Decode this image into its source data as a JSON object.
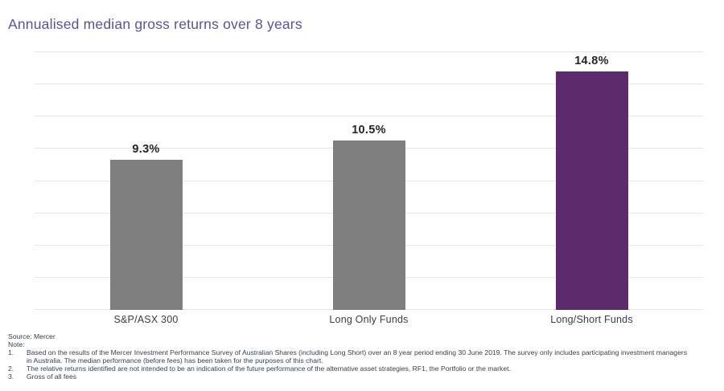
{
  "title": "Annualised median gross returns over 8 years",
  "chart_data": {
    "type": "bar",
    "title": "Annualised median gross returns over 8 years",
    "categories": [
      "S&P/ASX 300",
      "Long Only Funds",
      "Long/Short Funds"
    ],
    "values": [
      9.3,
      10.5,
      14.8
    ],
    "value_labels": [
      "9.3%",
      "10.5%",
      "14.8%"
    ],
    "bar_colors": [
      "#7F7F7F",
      "#7F7F7F",
      "#5B2B6D"
    ],
    "xlabel": "",
    "ylabel": "",
    "ylim": [
      0,
      16
    ],
    "grid_step": 2,
    "grid": true,
    "legend": false,
    "y_tick_labels_visible": false
  },
  "colors": {
    "title_text": "#5F5096",
    "gray_bar": "#7F7F7F",
    "purple_bar": "#5B2B6D",
    "gridline": "#E5E5E5",
    "value_label": "#262626",
    "category_label": "#3D3D3D",
    "footer_text": "#37424A"
  },
  "footer": {
    "source": "Source: Mercer",
    "note_label": "Note:",
    "notes": [
      {
        "num": "1.",
        "text": "Based on the results of the Mercer Investment Performance Survey of Australian Shares (including Long Short) over an 8 year period ending 30 June 2019.  The survey only includes participating investment managers in Australia.  The median performance (before fees) has been taken for the purposes of this chart."
      },
      {
        "num": "2.",
        "text": "The relative returns identified are not intended to be an indication of the future performance of the alternative asset strategies, RF1, the Portfolio or the market."
      },
      {
        "num": "3.",
        "text": "Gross of all fees"
      }
    ]
  }
}
